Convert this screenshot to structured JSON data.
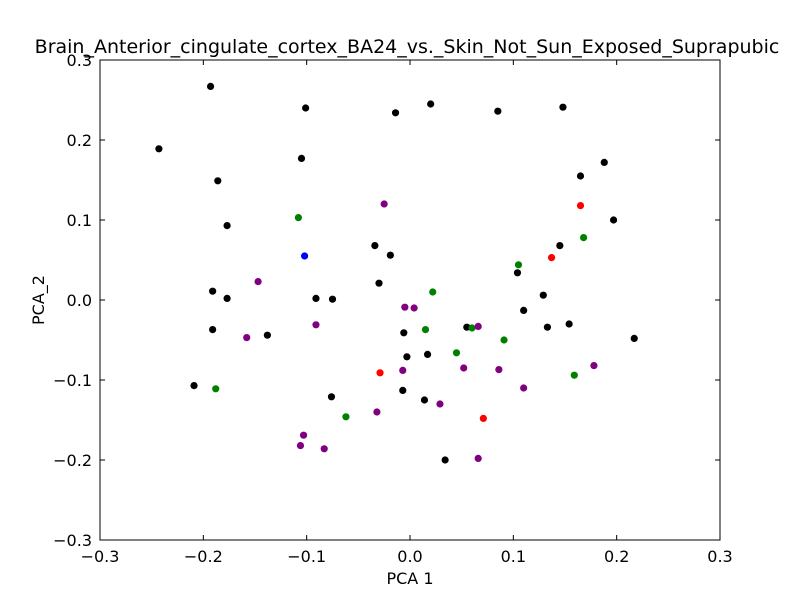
{
  "chart_data": {
    "type": "scatter",
    "title": "Brain_Anterior_cingulate_cortex_BA24_vs._Skin_Not_Sun_Exposed_Suprapubic",
    "xlabel": "PCA 1",
    "ylabel": "PCA_2",
    "xlim": [
      -0.3,
      0.3
    ],
    "ylim": [
      -0.3,
      0.3
    ],
    "xticks": [
      -0.3,
      -0.2,
      -0.1,
      0.0,
      0.1,
      0.2,
      0.3
    ],
    "yticks": [
      -0.3,
      -0.2,
      -0.1,
      0.0,
      0.1,
      0.2,
      0.3
    ],
    "xtick_labels": [
      "−0.3",
      "−0.2",
      "−0.1",
      "0.0",
      "0.1",
      "0.2",
      "0.3"
    ],
    "ytick_labels": [
      "−0.3",
      "−0.2",
      "−0.1",
      "0.0",
      "0.1",
      "0.2",
      "0.3"
    ],
    "grid": false,
    "series": [
      {
        "color": "#000000",
        "points": [
          [
            -0.193,
            0.267
          ],
          [
            -0.101,
            0.24
          ],
          [
            -0.014,
            0.234
          ],
          [
            0.02,
            0.245
          ],
          [
            0.085,
            0.236
          ],
          [
            0.148,
            0.241
          ],
          [
            -0.243,
            0.189
          ],
          [
            -0.105,
            0.177
          ],
          [
            -0.186,
            0.149
          ],
          [
            0.188,
            0.172
          ],
          [
            0.165,
            0.155
          ],
          [
            -0.177,
            0.093
          ],
          [
            0.197,
            0.1
          ],
          [
            -0.034,
            0.068
          ],
          [
            -0.019,
            0.056
          ],
          [
            0.145,
            0.068
          ],
          [
            0.104,
            0.034
          ],
          [
            -0.191,
            0.011
          ],
          [
            -0.177,
            0.002
          ],
          [
            -0.091,
            0.002
          ],
          [
            -0.075,
            0.001
          ],
          [
            -0.03,
            0.021
          ],
          [
            0.129,
            0.006
          ],
          [
            0.11,
            -0.013
          ],
          [
            -0.191,
            -0.037
          ],
          [
            -0.138,
            -0.044
          ],
          [
            -0.006,
            -0.041
          ],
          [
            0.055,
            -0.034
          ],
          [
            0.133,
            -0.034
          ],
          [
            0.154,
            -0.03
          ],
          [
            0.217,
            -0.048
          ],
          [
            -0.003,
            -0.071
          ],
          [
            0.017,
            -0.068
          ],
          [
            -0.209,
            -0.107
          ],
          [
            -0.076,
            -0.121
          ],
          [
            -0.007,
            -0.113
          ],
          [
            0.014,
            -0.125
          ],
          [
            0.034,
            -0.2
          ]
        ]
      },
      {
        "color": "#008000",
        "points": [
          [
            -0.108,
            0.103
          ],
          [
            0.105,
            0.044
          ],
          [
            0.168,
            0.078
          ],
          [
            0.022,
            0.01
          ],
          [
            0.015,
            -0.037
          ],
          [
            0.06,
            -0.035
          ],
          [
            0.091,
            -0.05
          ],
          [
            0.045,
            -0.066
          ],
          [
            0.159,
            -0.094
          ],
          [
            -0.188,
            -0.111
          ],
          [
            -0.062,
            -0.146
          ]
        ]
      },
      {
        "color": "#800080",
        "points": [
          [
            -0.025,
            0.12
          ],
          [
            -0.147,
            0.023
          ],
          [
            -0.005,
            -0.009
          ],
          [
            0.004,
            -0.01
          ],
          [
            -0.091,
            -0.031
          ],
          [
            -0.158,
            -0.047
          ],
          [
            0.066,
            -0.033
          ],
          [
            0.052,
            -0.085
          ],
          [
            0.086,
            -0.087
          ],
          [
            -0.007,
            -0.088
          ],
          [
            0.178,
            -0.082
          ],
          [
            0.11,
            -0.11
          ],
          [
            0.029,
            -0.13
          ],
          [
            -0.032,
            -0.14
          ],
          [
            -0.103,
            -0.169
          ],
          [
            -0.106,
            -0.182
          ],
          [
            -0.083,
            -0.186
          ],
          [
            0.066,
            -0.198
          ]
        ]
      },
      {
        "color": "#ff0000",
        "points": [
          [
            0.165,
            0.118
          ],
          [
            0.137,
            0.053
          ],
          [
            -0.029,
            -0.091
          ],
          [
            0.071,
            -0.148
          ]
        ]
      },
      {
        "color": "#0000ff",
        "points": [
          [
            -0.102,
            0.055
          ]
        ]
      }
    ]
  }
}
